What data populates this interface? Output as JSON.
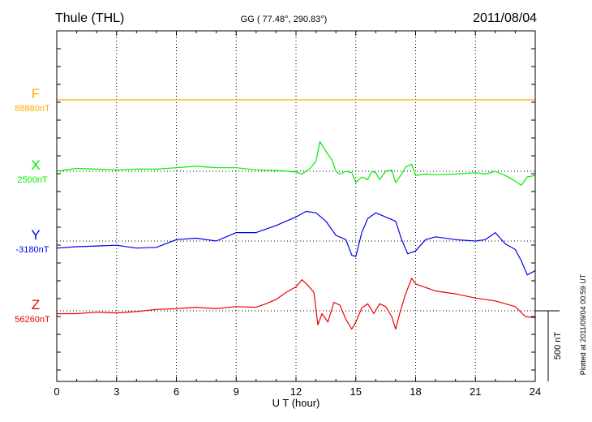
{
  "header": {
    "station": "Thule (THL)",
    "coords": "GG ( 77.48°, 290.83°)",
    "date": "2011/08/04"
  },
  "footer": {
    "plotted": "Plotted at 2011/09/04 00:59 UT",
    "scale_label": "500 nT"
  },
  "colors": {
    "F": "#ffaa00",
    "X": "#00ee00",
    "Y": "#0000ee",
    "Z": "#ee0000",
    "grid": "#000000"
  },
  "chart_data": {
    "type": "line",
    "title": "Thule (THL)",
    "xlabel": "U T (hour)",
    "ylabel": "",
    "xlim": [
      0,
      24
    ],
    "x_ticks": [
      "0",
      "3",
      "6",
      "9",
      "12",
      "15",
      "18",
      "21",
      "24"
    ],
    "grid": true,
    "scale_bar_nT": 500,
    "series": [
      {
        "name": "F",
        "baseline_label": "88880nT",
        "baseline": 88880,
        "x": [
          0,
          24
        ],
        "values": [
          88880,
          88880
        ]
      },
      {
        "name": "X",
        "baseline_label": "2500nT",
        "baseline": 2500,
        "x": [
          0,
          1,
          2,
          3,
          4,
          5,
          6,
          7,
          8,
          9,
          10,
          11,
          11.5,
          12,
          12.3,
          12.7,
          13,
          13.2,
          13.5,
          13.8,
          14,
          14.2,
          14.5,
          14.8,
          15,
          15.3,
          15.6,
          15.8,
          16,
          16.2,
          16.5,
          16.8,
          17,
          17.3,
          17.5,
          17.8,
          18,
          18.5,
          19,
          20,
          21,
          21.5,
          22,
          22.5,
          23,
          23.3,
          23.6,
          24
        ],
        "values": [
          2500,
          2520,
          2515,
          2510,
          2515,
          2515,
          2525,
          2535,
          2525,
          2525,
          2510,
          2505,
          2500,
          2495,
          2480,
          2520,
          2570,
          2710,
          2640,
          2580,
          2500,
          2480,
          2500,
          2490,
          2420,
          2460,
          2440,
          2500,
          2490,
          2440,
          2500,
          2510,
          2420,
          2480,
          2530,
          2550,
          2470,
          2480,
          2475,
          2480,
          2490,
          2480,
          2500,
          2470,
          2430,
          2400,
          2460,
          2470
        ]
      },
      {
        "name": "Y",
        "baseline_label": "-3180nT",
        "baseline": -3180,
        "x": [
          0,
          1,
          2,
          3,
          4,
          5,
          6,
          7,
          8,
          9,
          10,
          11,
          11.5,
          12,
          12.5,
          13,
          13.5,
          14,
          14.5,
          14.8,
          15,
          15.3,
          15.6,
          16,
          16.5,
          17,
          17.3,
          17.6,
          18,
          18.5,
          19,
          20,
          21,
          21.5,
          22,
          22.5,
          23,
          23.3,
          23.6,
          24
        ],
        "values": [
          -3230,
          -3220,
          -3215,
          -3210,
          -3230,
          -3225,
          -3170,
          -3160,
          -3180,
          -3120,
          -3120,
          -3070,
          -3040,
          -3010,
          -2970,
          -2980,
          -3040,
          -3140,
          -3170,
          -3280,
          -3290,
          -3120,
          -3020,
          -2980,
          -3010,
          -3040,
          -3170,
          -3270,
          -3250,
          -3170,
          -3150,
          -3170,
          -3180,
          -3170,
          -3120,
          -3200,
          -3240,
          -3320,
          -3420,
          -3390
        ]
      },
      {
        "name": "Z",
        "baseline_label": "56260nT",
        "baseline": 56260,
        "x": [
          0,
          1,
          2,
          3,
          4,
          5,
          6,
          7,
          8,
          9,
          10,
          10.5,
          11,
          11.5,
          12,
          12.3,
          12.6,
          12.9,
          13.1,
          13.3,
          13.6,
          13.9,
          14.2,
          14.5,
          14.8,
          15,
          15.3,
          15.6,
          15.9,
          16.2,
          16.5,
          16.8,
          17,
          17.2,
          17.5,
          17.8,
          18,
          19,
          20,
          21,
          22,
          22.5,
          23,
          23.5,
          24
        ],
        "values": [
          56240,
          56240,
          56250,
          56245,
          56255,
          56270,
          56275,
          56285,
          56275,
          56290,
          56285,
          56310,
          56340,
          56390,
          56430,
          56480,
          56440,
          56390,
          56160,
          56240,
          56180,
          56320,
          56300,
          56200,
          56130,
          56180,
          56280,
          56310,
          56240,
          56310,
          56290,
          56220,
          56130,
          56240,
          56380,
          56490,
          56450,
          56400,
          56380,
          56350,
          56330,
          56310,
          56290,
          56220,
          56210
        ]
      }
    ]
  }
}
